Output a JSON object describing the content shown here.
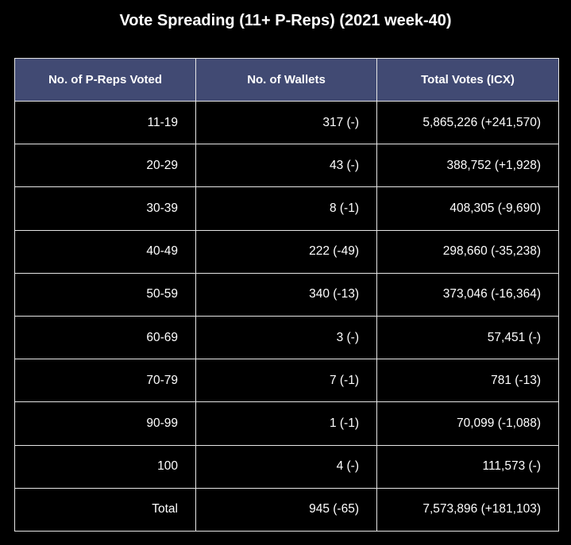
{
  "chart_data": {
    "type": "table",
    "title": "Vote Spreading (11+ P-Reps) (2021 week-40)",
    "columns": [
      "No. of P-Reps Voted",
      "No. of Wallets",
      "Total Votes (ICX)"
    ],
    "rows": [
      [
        "11-19",
        "317 (-)",
        "5,865,226 (+241,570)"
      ],
      [
        "20-29",
        "43 (-)",
        "388,752 (+1,928)"
      ],
      [
        "30-39",
        "8 (-1)",
        "408,305 (-9,690)"
      ],
      [
        "40-49",
        "222 (-49)",
        "298,660 (-35,238)"
      ],
      [
        "50-59",
        "340 (-13)",
        "373,046 (-16,364)"
      ],
      [
        "60-69",
        "3 (-)",
        "57,451 (-)"
      ],
      [
        "70-79",
        "7 (-1)",
        "781 (-13)"
      ],
      [
        "90-99",
        "1 (-1)",
        "70,099 (-1,088)"
      ],
      [
        "100",
        "4 (-)",
        "111,573 (-)"
      ],
      [
        "Total",
        "945 (-65)",
        "7,573,896 (+181,103)"
      ]
    ],
    "colors": {
      "header_background": "#414a73",
      "page_background": "#000000",
      "grid_lines": "#e6e6e6",
      "text": "#ffffff"
    }
  }
}
